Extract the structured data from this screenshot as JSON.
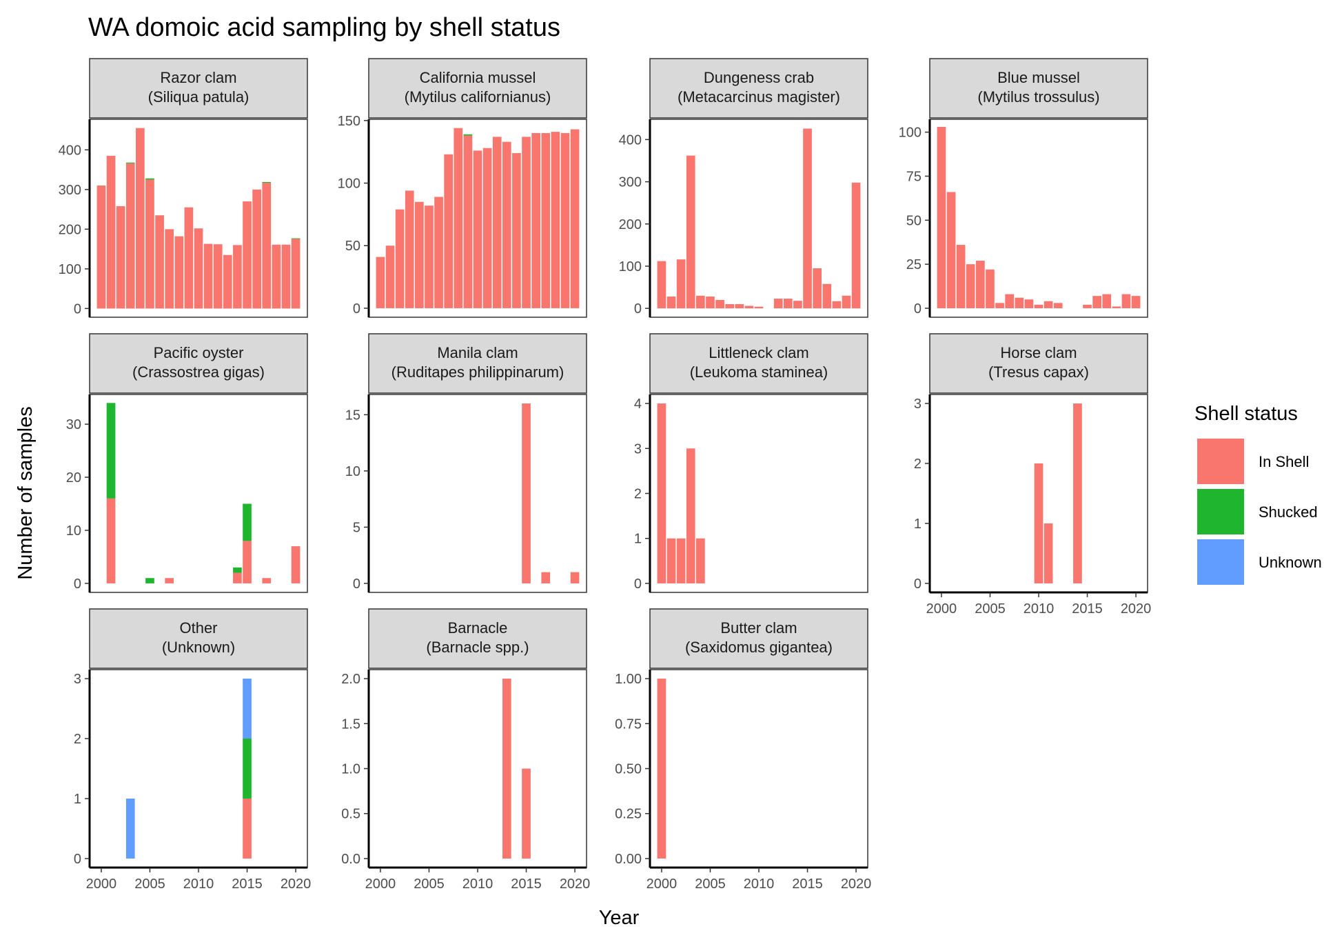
{
  "title": "WA domoic acid sampling by shell status",
  "xlabel": "Year",
  "ylabel": "Number of samples",
  "legend": {
    "title": "Shell status",
    "items": [
      {
        "label": "In Shell",
        "color": "#F8766D"
      },
      {
        "label": "Shucked",
        "color": "#1FB52F"
      },
      {
        "label": "Unknown",
        "color": "#619CFF"
      }
    ]
  },
  "chart_data": {
    "type": "bar",
    "stacked": true,
    "faceted": true,
    "x_range": [
      1998.8,
      2021.2
    ],
    "x_ticks": [
      2000,
      2005,
      2010,
      2015,
      2020
    ],
    "x_tick_labels": [
      "2000",
      "2005",
      "2010",
      "2015",
      "2020"
    ],
    "statuses": [
      "In Shell",
      "Shucked",
      "Unknown"
    ],
    "facets": [
      {
        "strip_line1": "Razor clam",
        "strip_line2": "(Siliqua patula)",
        "ylim": [
          -22,
          477
        ],
        "yticks": [
          0,
          100,
          200,
          300,
          400
        ],
        "ytick_labels": [
          "0",
          "100",
          "200",
          "300",
          "400"
        ],
        "show_x_axis": false,
        "bars": [
          {
            "year": 2000,
            "In Shell": 310
          },
          {
            "year": 2001,
            "In Shell": 385
          },
          {
            "year": 2002,
            "In Shell": 258
          },
          {
            "year": 2003,
            "In Shell": 366,
            "Shucked": 2
          },
          {
            "year": 2004,
            "In Shell": 455
          },
          {
            "year": 2005,
            "In Shell": 325,
            "Shucked": 3
          },
          {
            "year": 2006,
            "In Shell": 235
          },
          {
            "year": 2007,
            "In Shell": 200
          },
          {
            "year": 2008,
            "In Shell": 182
          },
          {
            "year": 2009,
            "In Shell": 255
          },
          {
            "year": 2010,
            "In Shell": 202
          },
          {
            "year": 2011,
            "In Shell": 163
          },
          {
            "year": 2012,
            "In Shell": 162
          },
          {
            "year": 2013,
            "In Shell": 135
          },
          {
            "year": 2014,
            "In Shell": 160
          },
          {
            "year": 2015,
            "In Shell": 270
          },
          {
            "year": 2016,
            "In Shell": 300
          },
          {
            "year": 2017,
            "In Shell": 317,
            "Shucked": 2
          },
          {
            "year": 2018,
            "In Shell": 161
          },
          {
            "year": 2019,
            "In Shell": 161
          },
          {
            "year": 2020,
            "In Shell": 176,
            "Shucked": 1
          }
        ]
      },
      {
        "strip_line1": "California mussel",
        "strip_line2": "(Mytilus californianus)",
        "ylim": [
          -7.2,
          151
        ],
        "yticks": [
          0,
          50,
          100,
          150
        ],
        "ytick_labels": [
          "0",
          "50",
          "100",
          "150"
        ],
        "show_x_axis": false,
        "bars": [
          {
            "year": 2000,
            "In Shell": 41
          },
          {
            "year": 2001,
            "In Shell": 50
          },
          {
            "year": 2002,
            "In Shell": 79
          },
          {
            "year": 2003,
            "In Shell": 94
          },
          {
            "year": 2004,
            "In Shell": 85
          },
          {
            "year": 2005,
            "In Shell": 82
          },
          {
            "year": 2006,
            "In Shell": 89
          },
          {
            "year": 2007,
            "In Shell": 123
          },
          {
            "year": 2008,
            "In Shell": 144
          },
          {
            "year": 2009,
            "In Shell": 138,
            "Shucked": 1
          },
          {
            "year": 2010,
            "In Shell": 126
          },
          {
            "year": 2011,
            "In Shell": 128
          },
          {
            "year": 2012,
            "In Shell": 137
          },
          {
            "year": 2013,
            "In Shell": 133
          },
          {
            "year": 2014,
            "In Shell": 124
          },
          {
            "year": 2015,
            "In Shell": 137
          },
          {
            "year": 2016,
            "In Shell": 140
          },
          {
            "year": 2017,
            "In Shell": 140
          },
          {
            "year": 2018,
            "In Shell": 141
          },
          {
            "year": 2019,
            "In Shell": 140
          },
          {
            "year": 2020,
            "In Shell": 143
          }
        ]
      },
      {
        "strip_line1": "Dungeness crab",
        "strip_line2": "(Metacarcinus magister)",
        "ylim": [
          -21,
          448
        ],
        "yticks": [
          0,
          100,
          200,
          300,
          400
        ],
        "ytick_labels": [
          "0",
          "100",
          "200",
          "300",
          "400"
        ],
        "show_x_axis": false,
        "bars": [
          {
            "year": 2000,
            "In Shell": 112
          },
          {
            "year": 2001,
            "In Shell": 28
          },
          {
            "year": 2002,
            "In Shell": 116
          },
          {
            "year": 2003,
            "In Shell": 362
          },
          {
            "year": 2004,
            "In Shell": 30
          },
          {
            "year": 2005,
            "In Shell": 28
          },
          {
            "year": 2006,
            "In Shell": 20
          },
          {
            "year": 2007,
            "In Shell": 10
          },
          {
            "year": 2008,
            "In Shell": 10
          },
          {
            "year": 2009,
            "In Shell": 6
          },
          {
            "year": 2010,
            "In Shell": 4
          },
          {
            "year": 2012,
            "In Shell": 23
          },
          {
            "year": 2013,
            "In Shell": 23
          },
          {
            "year": 2014,
            "In Shell": 18
          },
          {
            "year": 2015,
            "In Shell": 426
          },
          {
            "year": 2016,
            "In Shell": 95
          },
          {
            "year": 2017,
            "In Shell": 58
          },
          {
            "year": 2018,
            "In Shell": 17
          },
          {
            "year": 2019,
            "In Shell": 30
          },
          {
            "year": 2020,
            "In Shell": 298
          }
        ]
      },
      {
        "strip_line1": "Blue mussel",
        "strip_line2": "(Mytilus trossulus)",
        "ylim": [
          -5.1,
          107.3
        ],
        "yticks": [
          0,
          25,
          50,
          75,
          100
        ],
        "ytick_labels": [
          "0",
          "25",
          "50",
          "75",
          "100"
        ],
        "show_x_axis": false,
        "bars": [
          {
            "year": 2000,
            "In Shell": 103
          },
          {
            "year": 2001,
            "In Shell": 66
          },
          {
            "year": 2002,
            "In Shell": 36
          },
          {
            "year": 2003,
            "In Shell": 25
          },
          {
            "year": 2004,
            "In Shell": 27
          },
          {
            "year": 2005,
            "In Shell": 22
          },
          {
            "year": 2006,
            "In Shell": 3
          },
          {
            "year": 2007,
            "In Shell": 8
          },
          {
            "year": 2008,
            "In Shell": 6
          },
          {
            "year": 2009,
            "In Shell": 5
          },
          {
            "year": 2010,
            "In Shell": 2
          },
          {
            "year": 2011,
            "In Shell": 4
          },
          {
            "year": 2012,
            "In Shell": 3
          },
          {
            "year": 2015,
            "In Shell": 2
          },
          {
            "year": 2016,
            "In Shell": 7
          },
          {
            "year": 2017,
            "In Shell": 8
          },
          {
            "year": 2018,
            "In Shell": 1
          },
          {
            "year": 2019,
            "In Shell": 8
          },
          {
            "year": 2020,
            "In Shell": 7
          }
        ]
      },
      {
        "strip_line1": "Pacific oyster",
        "strip_line2": "(Crassostrea gigas)",
        "ylim": [
          -1.7,
          35.6
        ],
        "yticks": [
          0,
          10,
          20,
          30
        ],
        "ytick_labels": [
          "0",
          "10",
          "20",
          "30"
        ],
        "show_x_axis": false,
        "bars": [
          {
            "year": 2001,
            "In Shell": 16,
            "Shucked": 18
          },
          {
            "year": 2005,
            "Shucked": 1
          },
          {
            "year": 2007,
            "In Shell": 1
          },
          {
            "year": 2014,
            "In Shell": 2,
            "Shucked": 1
          },
          {
            "year": 2015,
            "In Shell": 8,
            "Shucked": 7
          },
          {
            "year": 2017,
            "In Shell": 1
          },
          {
            "year": 2020,
            "In Shell": 7
          }
        ]
      },
      {
        "strip_line1": "Manila clam",
        "strip_line2": "(Ruditapes philippinarum)",
        "ylim": [
          -0.8,
          16.8
        ],
        "yticks": [
          0,
          5,
          10,
          15
        ],
        "ytick_labels": [
          "0",
          "5",
          "10",
          "15"
        ],
        "show_x_axis": false,
        "bars": [
          {
            "year": 2015,
            "In Shell": 16
          },
          {
            "year": 2017,
            "In Shell": 1
          },
          {
            "year": 2020,
            "In Shell": 1
          }
        ]
      },
      {
        "strip_line1": "Littleneck clam",
        "strip_line2": "(Leukoma staminea)",
        "ylim": [
          -0.2,
          4.2
        ],
        "yticks": [
          0,
          1,
          2,
          3,
          4
        ],
        "ytick_labels": [
          "0",
          "1",
          "2",
          "3",
          "4"
        ],
        "show_x_axis": false,
        "bars": [
          {
            "year": 2000,
            "In Shell": 4
          },
          {
            "year": 2001,
            "In Shell": 1
          },
          {
            "year": 2002,
            "In Shell": 1
          },
          {
            "year": 2003,
            "In Shell": 3
          },
          {
            "year": 2004,
            "In Shell": 1
          }
        ]
      },
      {
        "strip_line1": "Horse clam",
        "strip_line2": "(Tresus capax)",
        "ylim": [
          -0.15,
          3.15
        ],
        "yticks": [
          0,
          1,
          2,
          3
        ],
        "ytick_labels": [
          "0",
          "1",
          "2",
          "3"
        ],
        "show_x_axis": true,
        "bars": [
          {
            "year": 2010,
            "In Shell": 2
          },
          {
            "year": 2011,
            "In Shell": 1
          },
          {
            "year": 2014,
            "In Shell": 3
          }
        ]
      },
      {
        "strip_line1": "Other",
        "strip_line2": "(Unknown)",
        "ylim": [
          -0.15,
          3.15
        ],
        "yticks": [
          0,
          1,
          2,
          3
        ],
        "ytick_labels": [
          "0",
          "1",
          "2",
          "3"
        ],
        "show_x_axis": true,
        "bars": [
          {
            "year": 2003,
            "Unknown": 1
          },
          {
            "year": 2015,
            "In Shell": 1,
            "Shucked": 1,
            "Unknown": 1
          }
        ]
      },
      {
        "strip_line1": "Barnacle",
        "strip_line2": "(Barnacle spp.)",
        "ylim": [
          -0.1,
          2.1
        ],
        "yticks": [
          0,
          0.5,
          1,
          1.5,
          2
        ],
        "ytick_labels": [
          "0.0",
          "0.5",
          "1.0",
          "1.5",
          "2.0"
        ],
        "show_x_axis": true,
        "bars": [
          {
            "year": 2013,
            "In Shell": 2
          },
          {
            "year": 2015,
            "In Shell": 1
          }
        ]
      },
      {
        "strip_line1": "Butter clam",
        "strip_line2": "(Saxidomus gigantea)",
        "ylim": [
          -0.05,
          1.05
        ],
        "yticks": [
          0,
          0.25,
          0.5,
          0.75,
          1
        ],
        "ytick_labels": [
          "0.00",
          "0.25",
          "0.50",
          "0.75",
          "1.00"
        ],
        "show_x_axis": true,
        "bars": [
          {
            "year": 2000,
            "In Shell": 1
          }
        ]
      }
    ]
  }
}
